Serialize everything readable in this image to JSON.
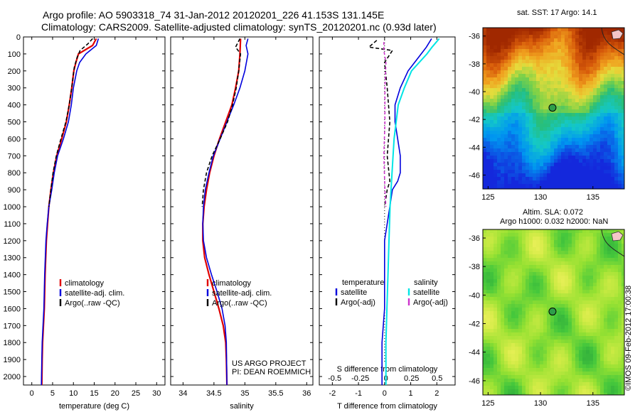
{
  "header": {
    "line1": "Argo profile: AO 5903318_74 31-Jan-2012 20120201_226 41.153S 131.145E",
    "line2": "Climatology: CARS2009. Satellite-adjusted climatology: synTS_20120201.nc (0.93d later)"
  },
  "depth_ticks": [
    0,
    100,
    200,
    300,
    400,
    500,
    600,
    700,
    800,
    900,
    1000,
    1100,
    1200,
    1300,
    1400,
    1500,
    1600,
    1700,
    1800,
    1900,
    2000
  ],
  "colors": {
    "clim": "#e00000",
    "sat": "#0000dd",
    "argo": "#000000",
    "sat_s": "#00e5e5",
    "argo_s": "#cc33cc"
  },
  "chart_data": [
    {
      "type": "line",
      "xlabel": "temperature (deg C)",
      "xlim": [
        -2,
        32
      ],
      "xticks": [
        0,
        5,
        10,
        15,
        20,
        25,
        30
      ],
      "ylim": [
        2050,
        0
      ],
      "legend": [
        "climatology",
        "satellite-adj. clim.",
        "Argo(..raw -QC)"
      ],
      "series": [
        {
          "name": "climatology",
          "x": [
            15.5,
            14.6,
            11.2,
            10.6,
            10.1,
            9.6,
            9.0,
            8.3,
            7.2,
            6.0,
            5.2,
            4.6,
            4.1,
            3.8,
            3.5,
            3.2,
            3.0,
            2.8,
            2.6,
            2.5,
            2.4
          ],
          "y": [
            10,
            50,
            100,
            150,
            200,
            300,
            400,
            500,
            600,
            700,
            800,
            900,
            1000,
            1100,
            1200,
            1400,
            1600,
            1700,
            1800,
            1900,
            2050
          ]
        },
        {
          "name": "satellite-adj. clim.",
          "x": [
            16.0,
            15.5,
            13.0,
            11.5,
            10.8,
            10.0,
            9.5,
            8.8,
            7.6,
            6.2,
            5.4,
            4.8,
            4.1,
            3.7,
            3.4,
            3.1,
            2.9,
            2.7,
            2.5,
            2.4,
            2.3
          ],
          "y": [
            10,
            50,
            100,
            150,
            200,
            300,
            400,
            500,
            600,
            700,
            800,
            900,
            1000,
            1100,
            1200,
            1400,
            1600,
            1700,
            1800,
            1900,
            2050
          ]
        },
        {
          "name": "Argo(..raw -QC)",
          "x": [
            14.6,
            13.5,
            11.6,
            10.9,
            10.2,
            9.6,
            9.0,
            8.2,
            7.0,
            5.9,
            5.1,
            4.6,
            4.1
          ],
          "y": [
            10,
            40,
            80,
            120,
            180,
            300,
            400,
            500,
            600,
            700,
            800,
            900,
            1000
          ]
        }
      ]
    },
    {
      "type": "line",
      "xlabel": "salinity",
      "xlim": [
        33.8,
        36.1
      ],
      "xticks": [
        34,
        34.5,
        35,
        35.5,
        36
      ],
      "ylim": [
        2050,
        0
      ],
      "legend": [
        "climatology",
        "satellite-adj. clim.",
        "Argo(..raw -QC)"
      ],
      "annotation": [
        "US ARGO PROJECT",
        "PI: DEAN ROEMMICH"
      ],
      "series": [
        {
          "name": "climatology",
          "x": [
            34.93,
            34.92,
            34.9,
            34.85,
            34.79,
            34.69,
            34.59,
            34.5,
            34.43,
            34.38,
            34.34,
            34.32,
            34.32,
            34.35,
            34.42,
            34.5,
            34.58,
            34.65,
            34.69,
            34.7,
            34.71
          ],
          "y": [
            10,
            100,
            200,
            300,
            400,
            500,
            600,
            700,
            800,
            900,
            1000,
            1100,
            1200,
            1300,
            1400,
            1500,
            1600,
            1700,
            1800,
            1900,
            2050
          ]
        },
        {
          "name": "satellite-adj. clim.",
          "x": [
            35.05,
            35.02,
            35.05,
            35.0,
            34.92,
            34.82,
            34.71,
            34.6,
            34.49,
            34.42,
            34.36,
            34.33,
            34.32,
            34.33,
            34.38,
            34.46,
            34.55,
            34.63,
            34.68,
            34.7,
            34.71
          ],
          "y": [
            10,
            50,
            100,
            200,
            300,
            400,
            500,
            600,
            700,
            800,
            900,
            1000,
            1100,
            1200,
            1300,
            1400,
            1500,
            1600,
            1700,
            1800,
            2050
          ]
        },
        {
          "name": "Argo(..raw -QC)",
          "x": [
            34.92,
            34.85,
            34.93,
            34.9,
            34.86,
            34.8,
            34.72,
            34.6,
            34.47,
            34.38,
            34.33,
            34.31
          ],
          "y": [
            10,
            60,
            100,
            200,
            300,
            400,
            500,
            600,
            700,
            800,
            900,
            1000
          ]
        }
      ]
    },
    {
      "type": "line",
      "xlabel": "T difference from climatology",
      "xlabel_top": "S difference from climatology",
      "xlim": [
        -2.5,
        2.7
      ],
      "xticks": [
        -2,
        -1,
        0,
        1,
        2
      ],
      "xticks_top": [
        -0.5,
        -0.25,
        0,
        0.25,
        0.5
      ],
      "ylim": [
        2050,
        0
      ],
      "legend_left": {
        "title": "temperature",
        "items": [
          "satellite",
          "Argo(-adj)"
        ]
      },
      "legend_right": {
        "title": "salinity",
        "items": [
          "satellite",
          "Argo(-adj)"
        ]
      },
      "series": [
        {
          "name": "temperature satellite",
          "x": [
            1.8,
            1.6,
            1.4,
            0.9,
            0.6,
            0.4,
            0.4,
            0.5,
            0.6,
            0.6,
            0.5,
            0.3,
            0.2,
            0.1,
            0.0,
            0.0,
            0.0,
            -0.1,
            -0.1,
            -0.1
          ],
          "y": [
            10,
            60,
            100,
            200,
            300,
            400,
            500,
            600,
            700,
            800,
            850,
            900,
            1000,
            1100,
            1200,
            1400,
            1600,
            1800,
            1900,
            2050
          ]
        },
        {
          "name": "temperature Argo(-adj)",
          "x": [
            -0.3,
            -0.6,
            0.3,
            0.0,
            0.1,
            0.2,
            0.1,
            0.2,
            0.1,
            0.0
          ],
          "y": [
            20,
            60,
            80,
            150,
            300,
            500,
            700,
            850,
            900,
            1000
          ]
        },
        {
          "name": "salinity satellite",
          "x": [
            0.52,
            0.45,
            0.4,
            0.25,
            0.18,
            0.12,
            0.08,
            0.06,
            0.04,
            0.03,
            0.02,
            0.01,
            0.0,
            0.0
          ],
          "y": [
            10,
            60,
            100,
            200,
            300,
            400,
            600,
            800,
            1000,
            1200,
            1400,
            1600,
            1800,
            2050
          ]
        },
        {
          "name": "salinity Argo(-adj)",
          "x": [
            -0.02,
            -0.02,
            0.0,
            -0.01,
            -0.01,
            -0.02,
            -0.01,
            0.0
          ],
          "y": [
            30,
            80,
            150,
            300,
            500,
            700,
            900,
            1000
          ]
        }
      ]
    }
  ],
  "maps": [
    {
      "title": [
        "sat. SST: 17 Argo: 14.1"
      ],
      "xticks": [
        125,
        130,
        135
      ],
      "yticks": [
        -36,
        -38,
        -40,
        -42,
        -44,
        -46
      ],
      "xlim": [
        124.5,
        138
      ],
      "ylim": [
        -47,
        -35.4
      ],
      "marker": [
        131.145,
        -41.153
      ]
    },
    {
      "title": [
        "Altim. SLA: 0.072",
        "Argo h1000: 0.032 h2000: NaN"
      ],
      "xticks": [
        125,
        130,
        135
      ],
      "yticks": [
        -36,
        -38,
        -40,
        -42,
        -44,
        -46
      ],
      "xlim": [
        124.5,
        138
      ],
      "ylim": [
        -47,
        -35.4
      ],
      "marker": [
        131.145,
        -41.153
      ]
    }
  ],
  "stamp": "©IMOS 09-Feb-2012 17:00:38"
}
